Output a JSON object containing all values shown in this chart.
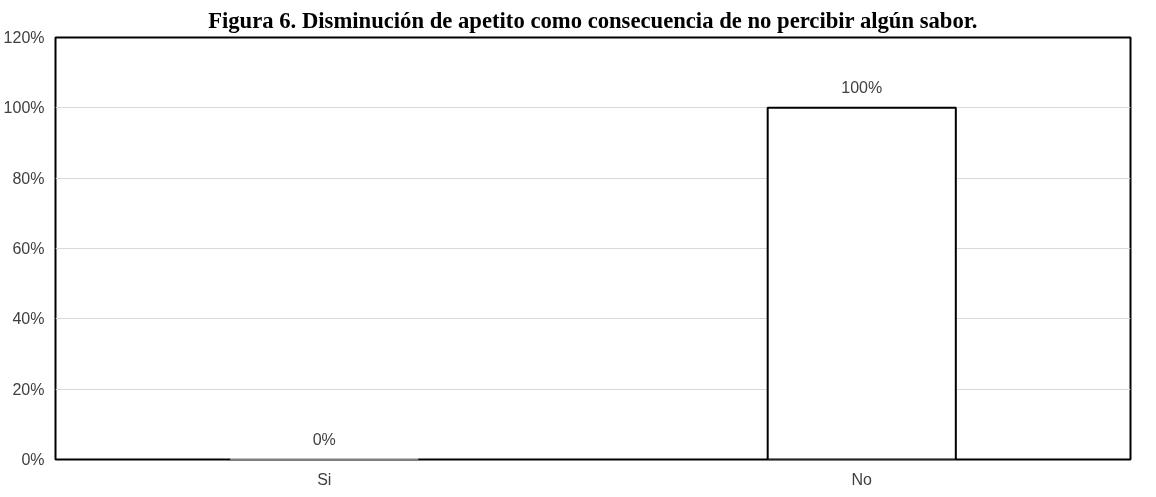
{
  "chart_data": {
    "type": "bar",
    "title": "Figura 6. Disminución de apetito como consecuencia de no percibir algún sabor.",
    "categories": [
      "Si",
      "No"
    ],
    "values": [
      0,
      100
    ],
    "color": "#ffffff",
    "value_labels": [
      "0%",
      "100%"
    ],
    "ylim": [
      0,
      120
    ],
    "yticks": [
      {
        "value": 0,
        "label": "0%"
      },
      {
        "value": 20,
        "label": "20%"
      },
      {
        "value": 40,
        "label": "40%"
      },
      {
        "value": 60,
        "label": "60%"
      },
      {
        "value": 80,
        "label": "80%"
      },
      {
        "value": 100,
        "label": "100%"
      },
      {
        "value": 120,
        "label": "120%"
      }
    ],
    "grid": "y"
  }
}
